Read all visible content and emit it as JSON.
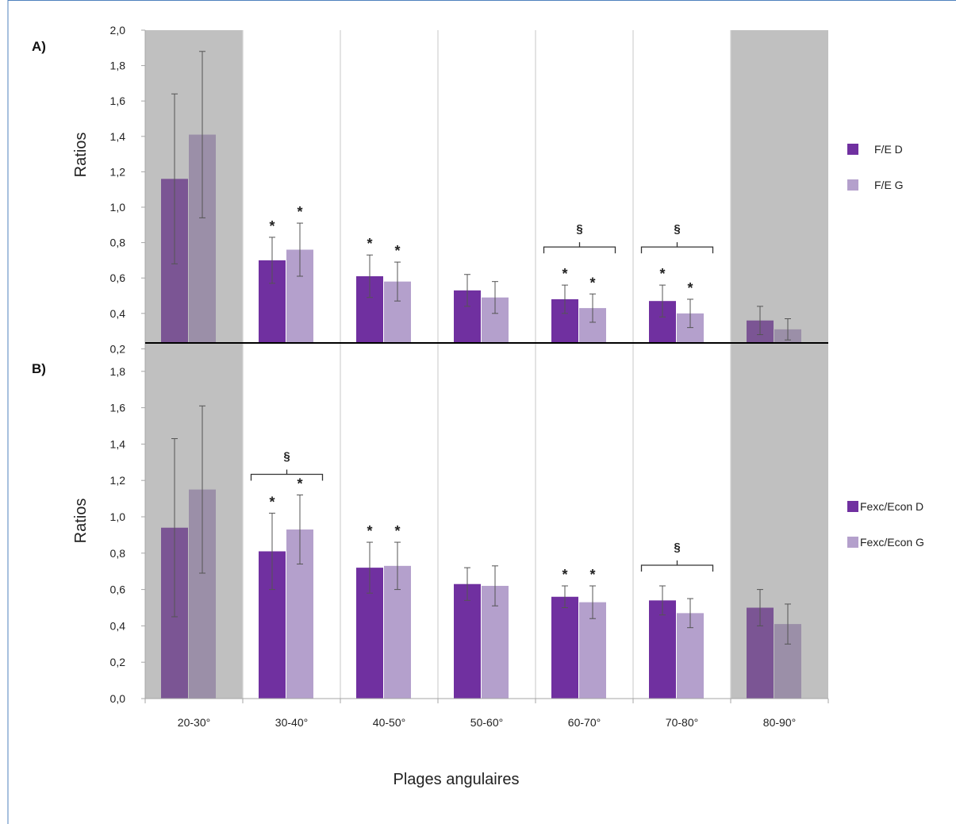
{
  "colors": {
    "series_d": "#7030a0",
    "series_g": "#b4a0cc",
    "shade": "#c0c0c0",
    "series_d_shaded": "#7b5594",
    "series_g_shaded": "#9b8fa8",
    "border": "#4f81bd"
  },
  "chart_data": [
    {
      "type": "bar",
      "panel_label": "A)",
      "ylabel": "Ratios",
      "ylim": [
        0,
        2.0
      ],
      "yticks": [
        "0,2",
        "0,4",
        "0,6",
        "0,8",
        "1,0",
        "1,2",
        "1,4",
        "1,6",
        "1,8",
        "2,0"
      ],
      "categories": [
        "20-30°",
        "30-40°",
        "40-50°",
        "50-60°",
        "60-70°",
        "70-80°",
        "80-90°"
      ],
      "shaded_categories": [
        "20-30°",
        "80-90°"
      ],
      "legend_position": "right",
      "series": [
        {
          "name": "F/E D",
          "values": [
            1.16,
            0.7,
            0.61,
            0.53,
            0.48,
            0.47,
            0.36
          ],
          "errors": [
            0.48,
            0.13,
            0.12,
            0.09,
            0.08,
            0.09,
            0.08
          ],
          "stars": [
            "",
            "*",
            "*",
            "",
            "*",
            "*",
            ""
          ]
        },
        {
          "name": "F/E G",
          "values": [
            1.41,
            0.76,
            0.58,
            0.49,
            0.43,
            0.4,
            0.31
          ],
          "errors": [
            0.47,
            0.15,
            0.11,
            0.09,
            0.08,
            0.08,
            0.06
          ],
          "stars": [
            "",
            "*",
            "*",
            "",
            "*",
            "*",
            ""
          ]
        }
      ],
      "brackets": [
        {
          "category": "60-70°",
          "symbol": "§"
        },
        {
          "category": "70-80°",
          "symbol": "§"
        }
      ]
    },
    {
      "type": "bar",
      "panel_label": "B)",
      "ylabel": "Ratios",
      "xlabel": "Plages angulaires",
      "ylim": [
        0,
        2.0
      ],
      "yticks": [
        "0,0",
        "0,2",
        "0,4",
        "0,6",
        "0,8",
        "1,0",
        "1,2",
        "1,4",
        "1,6",
        "1,8"
      ],
      "categories": [
        "20-30°",
        "30-40°",
        "40-50°",
        "50-60°",
        "60-70°",
        "70-80°",
        "80-90°"
      ],
      "shaded_categories": [
        "20-30°",
        "80-90°"
      ],
      "legend_position": "right",
      "series": [
        {
          "name": "Fexc/Econ D",
          "values": [
            0.94,
            0.81,
            0.72,
            0.63,
            0.56,
            0.54,
            0.5
          ],
          "errors": [
            0.49,
            0.21,
            0.14,
            0.09,
            0.06,
            0.08,
            0.1
          ],
          "stars": [
            "",
            "*",
            "*",
            "",
            "*",
            "",
            ""
          ]
        },
        {
          "name": "Fexc/Econ G",
          "values": [
            1.15,
            0.93,
            0.73,
            0.62,
            0.53,
            0.47,
            0.41
          ],
          "errors": [
            0.46,
            0.19,
            0.13,
            0.11,
            0.09,
            0.08,
            0.11
          ],
          "stars": [
            "",
            "*",
            "*",
            "",
            "*",
            "",
            ""
          ]
        }
      ],
      "brackets": [
        {
          "category": "30-40°",
          "symbol": "§"
        },
        {
          "category": "70-80°",
          "symbol": "§"
        }
      ]
    }
  ]
}
